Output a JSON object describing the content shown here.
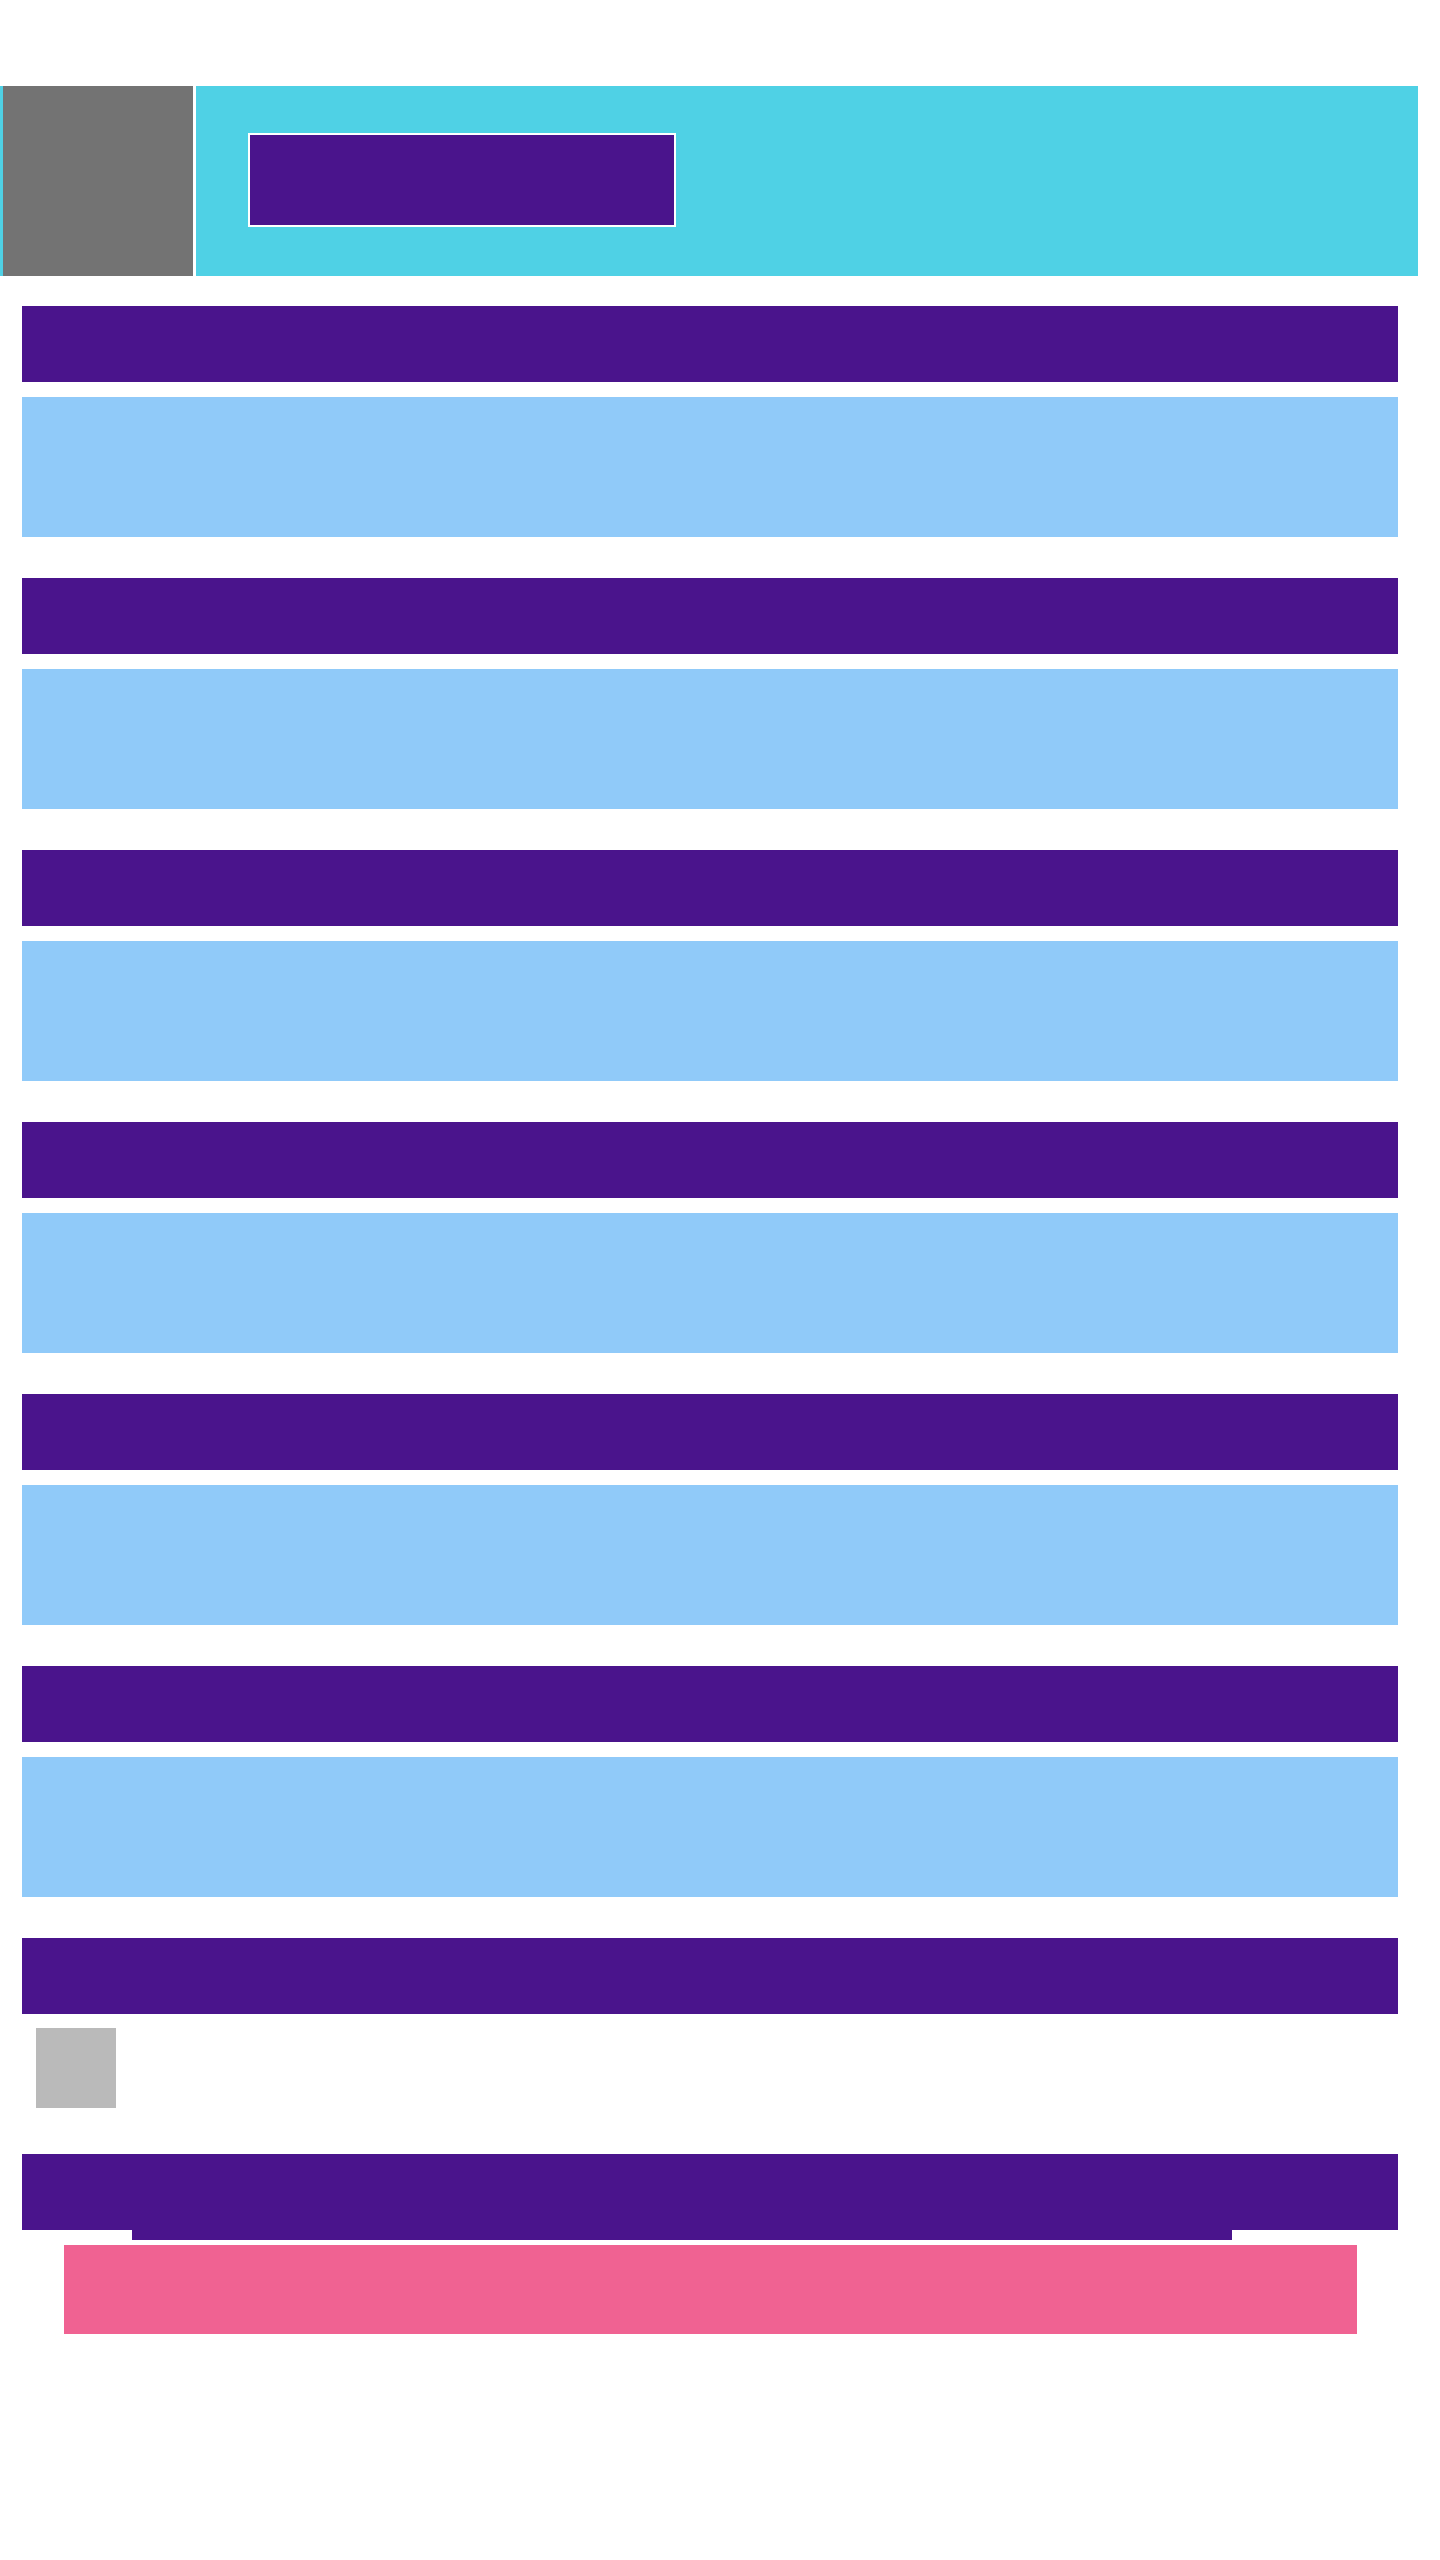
{
  "colors": {
    "header_bg": "#4fd1e5",
    "avatar_bg": "#737373",
    "purple": "#4a148c",
    "light_blue": "#90caf9",
    "thumb_bg": "#bababa",
    "pink": "#f06292"
  },
  "header": {
    "title": ""
  },
  "sections": [
    {
      "header": "",
      "body": ""
    },
    {
      "header": "",
      "body": ""
    },
    {
      "header": "",
      "body": ""
    },
    {
      "header": "",
      "body": ""
    },
    {
      "header": "",
      "body": ""
    },
    {
      "header": "",
      "body": ""
    }
  ],
  "media_section": {
    "header": ""
  },
  "footer_section": {
    "header": ""
  },
  "action_button": {
    "label": ""
  }
}
